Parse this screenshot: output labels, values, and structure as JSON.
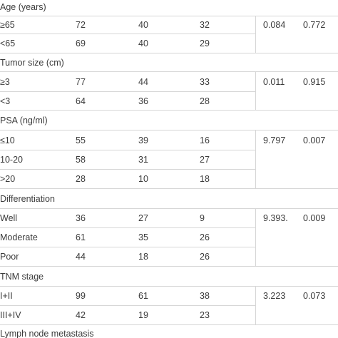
{
  "rows": [
    {
      "type": "header",
      "label": "Age (years)"
    },
    {
      "type": "data",
      "label": "≥65",
      "c1": "72",
      "c2": "40",
      "c3": "32",
      "stat": "0.084",
      "p": "0.772"
    },
    {
      "type": "data",
      "label": "<65",
      "c1": "69",
      "c2": "40",
      "c3": "29",
      "stat": "",
      "p": ""
    },
    {
      "type": "header",
      "label": "Tumor size (cm)"
    },
    {
      "type": "data",
      "label": "≥3",
      "c1": "77",
      "c2": "44",
      "c3": "33",
      "stat": "0.011",
      "p": "0.915"
    },
    {
      "type": "data",
      "label": "<3",
      "c1": "64",
      "c2": "36",
      "c3": "28",
      "stat": "",
      "p": ""
    },
    {
      "type": "header",
      "label": "PSA (ng/ml)"
    },
    {
      "type": "data",
      "label": "≤10",
      "c1": "55",
      "c2": "39",
      "c3": "16",
      "stat": "9.797",
      "p": "0.007"
    },
    {
      "type": "data",
      "label": "10-20",
      "c1": "58",
      "c2": "31",
      "c3": "27",
      "stat": "",
      "p": ""
    },
    {
      "type": "data",
      "label": ">20",
      "c1": "28",
      "c2": "10",
      "c3": "18",
      "stat": "",
      "p": ""
    },
    {
      "type": "header",
      "label": "Differentiation"
    },
    {
      "type": "data",
      "label": "Well",
      "c1": "36",
      "c2": "27",
      "c3": "9",
      "stat": "9.393.",
      "p": "0.009"
    },
    {
      "type": "data",
      "label": "Moderate",
      "c1": "61",
      "c2": "35",
      "c3": "26",
      "stat": "",
      "p": ""
    },
    {
      "type": "data",
      "label": "Poor",
      "c1": "44",
      "c2": "18",
      "c3": "26",
      "stat": "",
      "p": ""
    },
    {
      "type": "header",
      "label": "TNM stage"
    },
    {
      "type": "data",
      "label": "I+II",
      "c1": "99",
      "c2": "61",
      "c3": "38",
      "stat": "3.223",
      "p": "0.073"
    },
    {
      "type": "data",
      "label": "III+IV",
      "c1": "42",
      "c2": "19",
      "c3": "23",
      "stat": "",
      "p": ""
    },
    {
      "type": "header",
      "label": "Lymph node metastasis"
    }
  ]
}
